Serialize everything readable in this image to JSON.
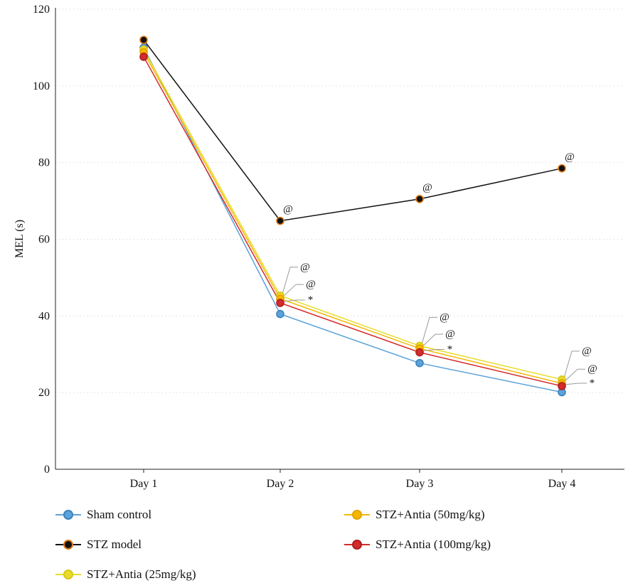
{
  "chart_data": {
    "type": "line",
    "categories": [
      "Day 1",
      "Day 2",
      "Day 3",
      "Day 4"
    ],
    "ylabel": "MEL (s)",
    "ylim": [
      0,
      120
    ],
    "yticks": [
      0,
      20,
      40,
      60,
      80,
      100,
      120
    ],
    "grid": "horizontal dotted",
    "legend_position": "bottom",
    "series": [
      {
        "name": "Sham control",
        "values": [
          110,
          40.5,
          27.7,
          20.1
        ],
        "color": "#5ba3d9",
        "edge": "#3f83bd"
      },
      {
        "name": "STZ model",
        "values": [
          112,
          64.8,
          70.5,
          78.5
        ],
        "color": "#111111",
        "edge": "#e07a10"
      },
      {
        "name": "STZ+Antia (25mg/kg)",
        "values": [
          109.5,
          45.3,
          32.2,
          23.4
        ],
        "color": "#e8dc2a",
        "edge": "#d8c71a"
      },
      {
        "name": "STZ+Antia (50mg/kg)",
        "values": [
          108.8,
          44.5,
          31.5,
          22.4
        ],
        "color": "#f5b800",
        "edge": "#e3a300"
      },
      {
        "name": "STZ+Antia (100mg/kg)",
        "values": [
          107.6,
          43.4,
          30.5,
          21.7
        ],
        "color": "#d42b2b",
        "edge": "#b01d1d"
      }
    ],
    "annotations": [
      {
        "text": "@",
        "category": "Day 2",
        "series": "STZ model"
      },
      {
        "text": "@",
        "category": "Day 3",
        "series": "STZ model"
      },
      {
        "text": "@",
        "category": "Day 4",
        "series": "STZ model"
      },
      {
        "text": "@",
        "category": "Day 2",
        "series": "STZ+Antia (25mg/kg)"
      },
      {
        "text": "@",
        "category": "Day 2",
        "series": "STZ+Antia (50mg/kg)"
      },
      {
        "text": "*",
        "category": "Day 2",
        "series": "STZ+Antia (100mg/kg)"
      },
      {
        "text": "@",
        "category": "Day 3",
        "series": "STZ+Antia (25mg/kg)"
      },
      {
        "text": "@",
        "category": "Day 3",
        "series": "STZ+Antia (50mg/kg)"
      },
      {
        "text": "*",
        "category": "Day 3",
        "series": "STZ+Antia (100mg/kg)"
      },
      {
        "text": "@",
        "category": "Day 4",
        "series": "STZ+Antia (25mg/kg)"
      },
      {
        "text": "@",
        "category": "Day 4",
        "series": "STZ+Antia (50mg/kg)"
      },
      {
        "text": "*",
        "category": "Day 4",
        "series": "STZ+Antia (100mg/kg)"
      }
    ]
  },
  "legend": {
    "items": [
      {
        "label": "Sham control"
      },
      {
        "label": "STZ model"
      },
      {
        "label": "STZ+Antia (25mg/kg)"
      },
      {
        "label": "STZ+Antia (50mg/kg)"
      },
      {
        "label": "STZ+Antia (100mg/kg)"
      }
    ]
  }
}
